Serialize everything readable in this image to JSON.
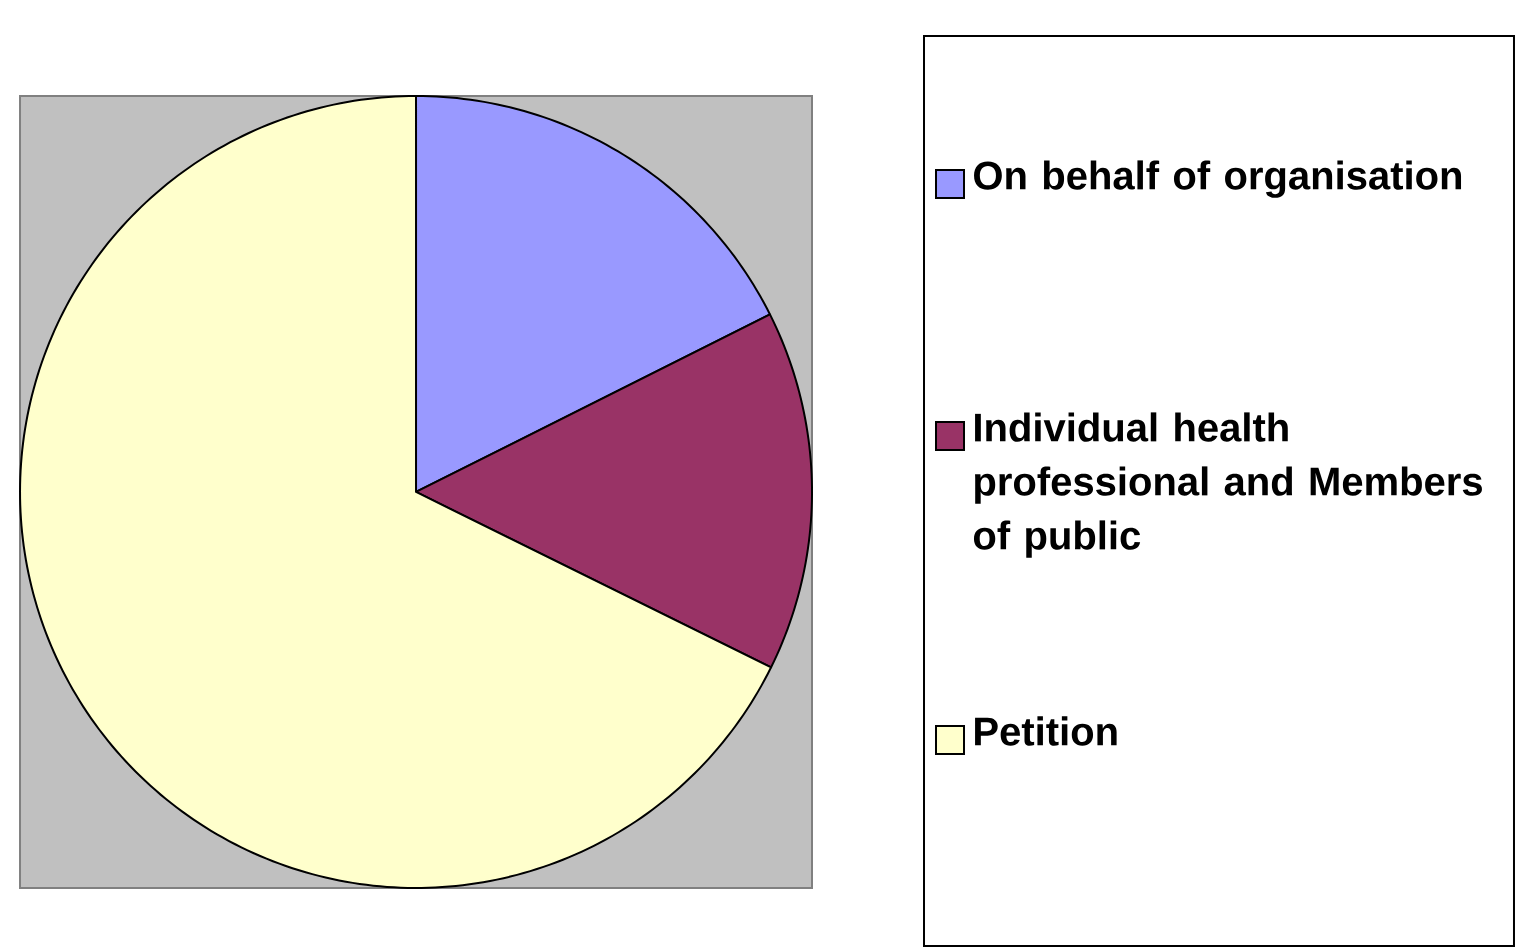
{
  "chart_data": {
    "type": "pie",
    "categories": [
      "On behalf of organisation",
      "Individual health professional and Members of public",
      "Petition"
    ],
    "values": [
      17.6,
      14.7,
      67.7
    ],
    "colors": [
      "#9999ff",
      "#993366",
      "#ffffcc"
    ],
    "legend": "right"
  }
}
